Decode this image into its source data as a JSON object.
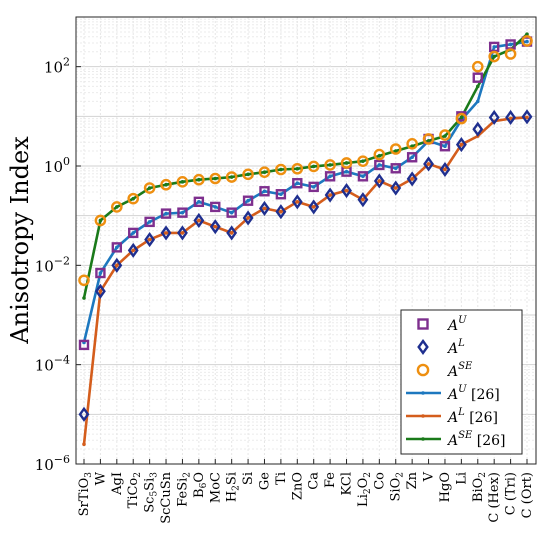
{
  "chart_data": {
    "type": "line",
    "ylabel": "Anisotropy Index",
    "yscale": "log",
    "ylim": [
      1e-06,
      1000
    ],
    "yticks": [
      {
        "value": 1e-06,
        "base": "10",
        "exp": "−6"
      },
      {
        "value": 0.0001,
        "base": "10",
        "exp": "−4"
      },
      {
        "value": 0.01,
        "base": "10",
        "exp": "−2"
      },
      {
        "value": 1,
        "base": "10",
        "exp": "0"
      },
      {
        "value": 100,
        "base": "10",
        "exp": "2"
      }
    ],
    "grid": true,
    "legend_position": "bottom-right",
    "categories": [
      {
        "base": "SrTiO",
        "sub": "3"
      },
      {
        "base": "W",
        "sub": ""
      },
      {
        "base": "AgI",
        "sub": ""
      },
      {
        "base": "TiCo",
        "sub": "2"
      },
      {
        "base": "Sc",
        "sub": "5",
        "base2": "Si",
        "sub2": "3"
      },
      {
        "base": "ScCuSn",
        "sub": ""
      },
      {
        "base": "FeSi",
        "sub": "2"
      },
      {
        "base": "B",
        "sub": "6",
        "base2": "O",
        "sub2": ""
      },
      {
        "base": "MoC",
        "sub": ""
      },
      {
        "base": "H",
        "sub": "2",
        "base2": "Si",
        "sub2": ""
      },
      {
        "base": "Si",
        "sub": ""
      },
      {
        "base": "Ge",
        "sub": ""
      },
      {
        "base": "Ti",
        "sub": ""
      },
      {
        "base": "ZnO",
        "sub": ""
      },
      {
        "base": "Ca",
        "sub": ""
      },
      {
        "base": "Fe",
        "sub": ""
      },
      {
        "base": "KCl",
        "sub": ""
      },
      {
        "base": "Li",
        "sub": "2",
        "base2": "O",
        "sub2": "2"
      },
      {
        "base": "Co",
        "sub": ""
      },
      {
        "base": "SiO",
        "sub": "2"
      },
      {
        "base": "Zn",
        "sub": ""
      },
      {
        "base": "V",
        "sub": ""
      },
      {
        "base": "HgO",
        "sub": ""
      },
      {
        "base": "Li",
        "sub": ""
      },
      {
        "base": "BiO",
        "sub": "2"
      },
      {
        "base": "C (Hex)",
        "sub": ""
      },
      {
        "base": "C (Tri)",
        "sub": ""
      },
      {
        "base": "C (Ort)",
        "sub": ""
      }
    ],
    "series": [
      {
        "name": "A^U",
        "label_base": "A",
        "label_sup": "U",
        "marker": "square",
        "color": "#7e2f8e",
        "values": [
          0.00025,
          0.007,
          0.023,
          0.045,
          0.075,
          0.11,
          0.115,
          0.19,
          0.15,
          0.115,
          0.2,
          0.31,
          0.27,
          0.45,
          0.38,
          0.62,
          0.77,
          0.62,
          1.05,
          0.9,
          1.5,
          3.5,
          2.5,
          10,
          60,
          250,
          280,
          320
        ]
      },
      {
        "name": "A^L",
        "label_base": "A",
        "label_sup": "L",
        "marker": "diamond",
        "color": "#1f2f8f",
        "values": [
          1e-05,
          0.003,
          0.01,
          0.02,
          0.033,
          0.045,
          0.045,
          0.08,
          0.06,
          0.045,
          0.09,
          0.14,
          0.12,
          0.19,
          0.15,
          0.26,
          0.32,
          0.21,
          0.5,
          0.36,
          0.55,
          1.1,
          0.85,
          2.7,
          5.5,
          9.5,
          9.5,
          9.8
        ]
      },
      {
        "name": "A^SE",
        "label_base": "A",
        "label_sup": "SE",
        "marker": "circle",
        "color": "#ee8f10",
        "values": [
          0.005,
          0.08,
          0.15,
          0.22,
          0.36,
          0.42,
          0.48,
          0.53,
          0.56,
          0.6,
          0.68,
          0.75,
          0.85,
          0.88,
          0.98,
          1.05,
          1.15,
          1.25,
          1.7,
          2.2,
          2.8,
          3.5,
          4.2,
          9,
          100,
          160,
          180,
          330
        ]
      },
      {
        "name": "A^U [26]",
        "label_base": "A",
        "label_sup": "U",
        "label_suffix": "[26]",
        "marker": "line",
        "color": "#1d78bf",
        "values": [
          0.00028,
          0.007,
          0.023,
          0.045,
          0.075,
          0.11,
          0.115,
          0.19,
          0.15,
          0.115,
          0.2,
          0.31,
          0.27,
          0.45,
          0.38,
          0.62,
          0.77,
          0.62,
          1.05,
          0.9,
          1.5,
          3.2,
          2.5,
          8.5,
          20,
          250,
          280,
          320
        ]
      },
      {
        "name": "A^L [26]",
        "label_base": "A",
        "label_sup": "L",
        "label_suffix": "[26]",
        "marker": "line",
        "color": "#d45d1c",
        "values": [
          2.5e-06,
          0.003,
          0.01,
          0.02,
          0.033,
          0.045,
          0.045,
          0.08,
          0.06,
          0.045,
          0.09,
          0.14,
          0.12,
          0.19,
          0.15,
          0.26,
          0.32,
          0.21,
          0.5,
          0.36,
          0.55,
          1.1,
          0.85,
          2.7,
          4,
          8,
          9,
          9.5
        ]
      },
      {
        "name": "A^SE [26]",
        "label_base": "A",
        "label_sup": "SE",
        "label_suffix": "[26]",
        "marker": "line",
        "color": "#1a7a1a",
        "values": [
          0.0022,
          0.08,
          0.15,
          0.22,
          0.36,
          0.42,
          0.48,
          0.53,
          0.56,
          0.6,
          0.68,
          0.75,
          0.85,
          0.88,
          0.98,
          1.05,
          1.15,
          1.25,
          1.6,
          2,
          2.5,
          3.2,
          4,
          9.5,
          40,
          160,
          220,
          450
        ]
      }
    ]
  }
}
